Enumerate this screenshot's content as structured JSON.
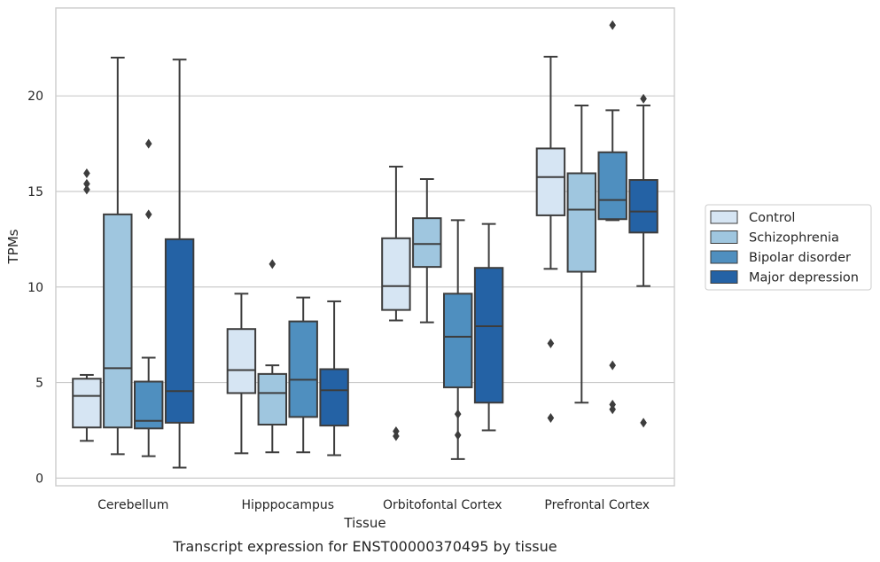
{
  "chart_data": {
    "type": "boxplot",
    "caption": "Transcript expression for ENST00000370495 by tissue",
    "xlabel": "Tissue",
    "ylabel": "TPMs",
    "ylim": [
      -0.4,
      24.6
    ],
    "yticks": [
      0,
      5,
      10,
      15,
      20
    ],
    "grid": true,
    "legend_position": "right",
    "categories": [
      "Cerebellum",
      "Hipppocampus",
      "Orbitofontal Cortex",
      "Prefrontal Cortex"
    ],
    "colors": [
      "#d6e5f3",
      "#9fc6df",
      "#4f8fbf",
      "#2462a5"
    ],
    "series": [
      {
        "name": "Control",
        "boxes": [
          {
            "whislo": 1.95,
            "q1": 2.65,
            "med": 4.3,
            "q3": 5.2,
            "whishi": 5.4,
            "fliers": [
              15.1,
              15.4,
              15.95
            ]
          },
          {
            "whislo": 1.3,
            "q1": 4.45,
            "med": 5.65,
            "q3": 7.8,
            "whishi": 9.65,
            "fliers": []
          },
          {
            "whislo": 8.25,
            "q1": 8.8,
            "med": 10.05,
            "q3": 12.55,
            "whishi": 16.3,
            "fliers": [
              2.2,
              2.45
            ]
          },
          {
            "whislo": 10.95,
            "q1": 13.75,
            "med": 15.75,
            "q3": 17.25,
            "whishi": 22.05,
            "fliers": [
              3.15,
              7.05
            ]
          }
        ]
      },
      {
        "name": "Schizophrenia",
        "boxes": [
          {
            "whislo": 1.25,
            "q1": 2.65,
            "med": 5.75,
            "q3": 13.8,
            "whishi": 22.0,
            "fliers": []
          },
          {
            "whislo": 1.35,
            "q1": 2.8,
            "med": 4.45,
            "q3": 5.45,
            "whishi": 5.9,
            "fliers": [
              11.2
            ]
          },
          {
            "whislo": 8.15,
            "q1": 11.05,
            "med": 12.25,
            "q3": 13.6,
            "whishi": 15.65,
            "fliers": []
          },
          {
            "whislo": 3.95,
            "q1": 10.8,
            "med": 14.05,
            "q3": 15.95,
            "whishi": 19.5,
            "fliers": []
          }
        ]
      },
      {
        "name": "Bipolar disorder",
        "boxes": [
          {
            "whislo": 1.15,
            "q1": 2.6,
            "med": 3.0,
            "q3": 5.05,
            "whishi": 6.3,
            "fliers": [
              13.8,
              17.5
            ]
          },
          {
            "whislo": 1.35,
            "q1": 3.2,
            "med": 5.15,
            "q3": 8.2,
            "whishi": 9.45,
            "fliers": []
          },
          {
            "whislo": 1.0,
            "q1": 4.75,
            "med": 7.4,
            "q3": 9.65,
            "whishi": 13.5,
            "fliers": [
              2.25,
              3.35
            ]
          },
          {
            "whislo": 13.5,
            "q1": 13.55,
            "med": 14.55,
            "q3": 17.05,
            "whishi": 19.25,
            "fliers": [
              3.6,
              3.85,
              5.9,
              23.7
            ]
          }
        ]
      },
      {
        "name": "Major depression",
        "boxes": [
          {
            "whislo": 0.55,
            "q1": 2.9,
            "med": 4.55,
            "q3": 12.5,
            "whishi": 21.9,
            "fliers": []
          },
          {
            "whislo": 1.2,
            "q1": 2.75,
            "med": 4.6,
            "q3": 5.7,
            "whishi": 9.25,
            "fliers": []
          },
          {
            "whislo": 2.5,
            "q1": 3.95,
            "med": 7.95,
            "q3": 11.0,
            "whishi": 13.3,
            "fliers": []
          },
          {
            "whislo": 10.05,
            "q1": 12.85,
            "med": 13.95,
            "q3": 15.6,
            "whishi": 19.5,
            "fliers": [
              2.9,
              19.85
            ]
          }
        ]
      }
    ]
  }
}
